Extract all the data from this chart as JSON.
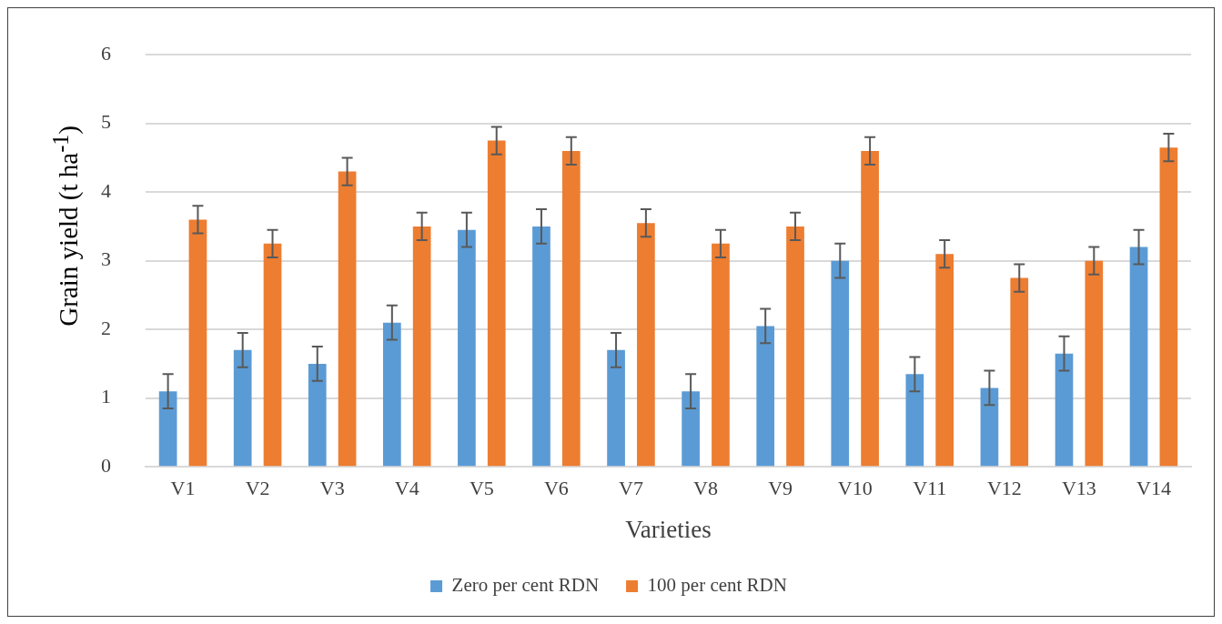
{
  "chart_data": {
    "type": "bar",
    "xlabel": "Varieties",
    "ylabel": "Grain yield (t ha$^{-1}$)",
    "categories": [
      "V1",
      "V2",
      "V3",
      "V4",
      "V5",
      "V6",
      "V7",
      "V8",
      "V9",
      "V10",
      "V11",
      "V12",
      "V13",
      "V14"
    ],
    "series": [
      {
        "name": "Zero per cent RDN",
        "color": "#5b9bd5",
        "values": [
          1.1,
          1.7,
          1.5,
          2.1,
          3.45,
          3.5,
          1.7,
          1.1,
          2.05,
          3.0,
          1.35,
          1.15,
          1.65,
          3.2
        ],
        "errors": [
          0.25,
          0.25,
          0.25,
          0.25,
          0.25,
          0.25,
          0.25,
          0.25,
          0.25,
          0.25,
          0.25,
          0.25,
          0.25,
          0.25
        ]
      },
      {
        "name": "100 per cent RDN",
        "color": "#ed7d31",
        "values": [
          3.6,
          3.25,
          4.3,
          3.5,
          4.75,
          4.6,
          3.55,
          3.25,
          3.5,
          4.6,
          3.1,
          2.75,
          3.0,
          4.65
        ],
        "errors": [
          0.2,
          0.2,
          0.2,
          0.2,
          0.2,
          0.2,
          0.2,
          0.2,
          0.2,
          0.2,
          0.2,
          0.2,
          0.2,
          0.2
        ]
      }
    ],
    "ylim": [
      0,
      6
    ],
    "yticks": [
      0,
      1,
      2,
      3,
      4,
      5,
      6
    ],
    "grid": "y",
    "legend": "bottom"
  }
}
